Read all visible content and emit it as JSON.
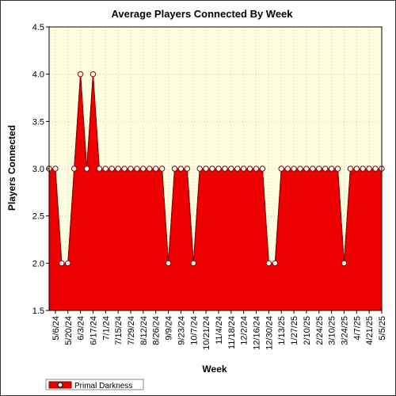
{
  "chart_data": {
    "type": "area",
    "title": "Average Players Connected By Week",
    "xlabel": "Week",
    "ylabel": "Players Connected",
    "ylim": [
      1.5,
      4.5
    ],
    "y_ticks": [
      "1.5",
      "2.0",
      "2.5",
      "3.0",
      "3.5",
      "4.0",
      "4.5"
    ],
    "x_tick_labels": [
      "5/6/24",
      "5/20/24",
      "6/3/24",
      "6/17/24",
      "7/1/24",
      "7/15/24",
      "7/29/24",
      "8/12/24",
      "8/26/24",
      "9/9/24",
      "9/23/24",
      "10/7/24",
      "10/21/24",
      "11/4/24",
      "11/18/24",
      "12/2/24",
      "12/16/24",
      "12/30/24",
      "1/13/25",
      "1/27/25",
      "2/10/25",
      "2/24/25",
      "3/10/25",
      "3/24/25",
      "4/7/25",
      "4/21/25",
      "5/5/25"
    ],
    "legend_position": "bottom-left",
    "grid": true,
    "colors": {
      "area": "#ee0000",
      "plot_background": "#fdfde0",
      "marker_fill": "#ffffff",
      "marker_stroke": "#880000"
    },
    "series": [
      {
        "name": "Primal Darkness",
        "x": [
          "4/29/24",
          "5/6/24",
          "5/13/24",
          "5/20/24",
          "5/27/24",
          "6/3/24",
          "6/10/24",
          "6/17/24",
          "6/24/24",
          "7/1/24",
          "7/8/24",
          "7/15/24",
          "7/22/24",
          "7/29/24",
          "8/5/24",
          "8/12/24",
          "8/19/24",
          "8/26/24",
          "9/2/24",
          "9/9/24",
          "9/16/24",
          "9/23/24",
          "9/30/24",
          "10/7/24",
          "10/14/24",
          "10/21/24",
          "10/28/24",
          "11/4/24",
          "11/11/24",
          "11/18/24",
          "11/25/24",
          "12/2/24",
          "12/9/24",
          "12/16/24",
          "12/23/24",
          "12/30/24",
          "1/6/25",
          "1/13/25",
          "1/20/25",
          "1/27/25",
          "2/3/25",
          "2/10/25",
          "2/17/25",
          "2/24/25",
          "3/3/25",
          "3/10/25",
          "3/17/25",
          "3/24/25",
          "3/31/25",
          "4/7/25",
          "4/14/25",
          "4/21/25",
          "4/28/25",
          "5/5/25"
        ],
        "values": [
          3,
          3,
          2,
          2,
          3,
          4,
          3,
          4,
          3,
          3,
          3,
          3,
          3,
          3,
          3,
          3,
          3,
          3,
          3,
          2,
          3,
          3,
          3,
          2,
          3,
          3,
          3,
          3,
          3,
          3,
          3,
          3,
          3,
          3,
          3,
          2,
          2,
          3,
          3,
          3,
          3,
          3,
          3,
          3,
          3,
          3,
          3,
          2,
          3,
          3,
          3,
          3,
          3,
          3
        ]
      }
    ]
  }
}
